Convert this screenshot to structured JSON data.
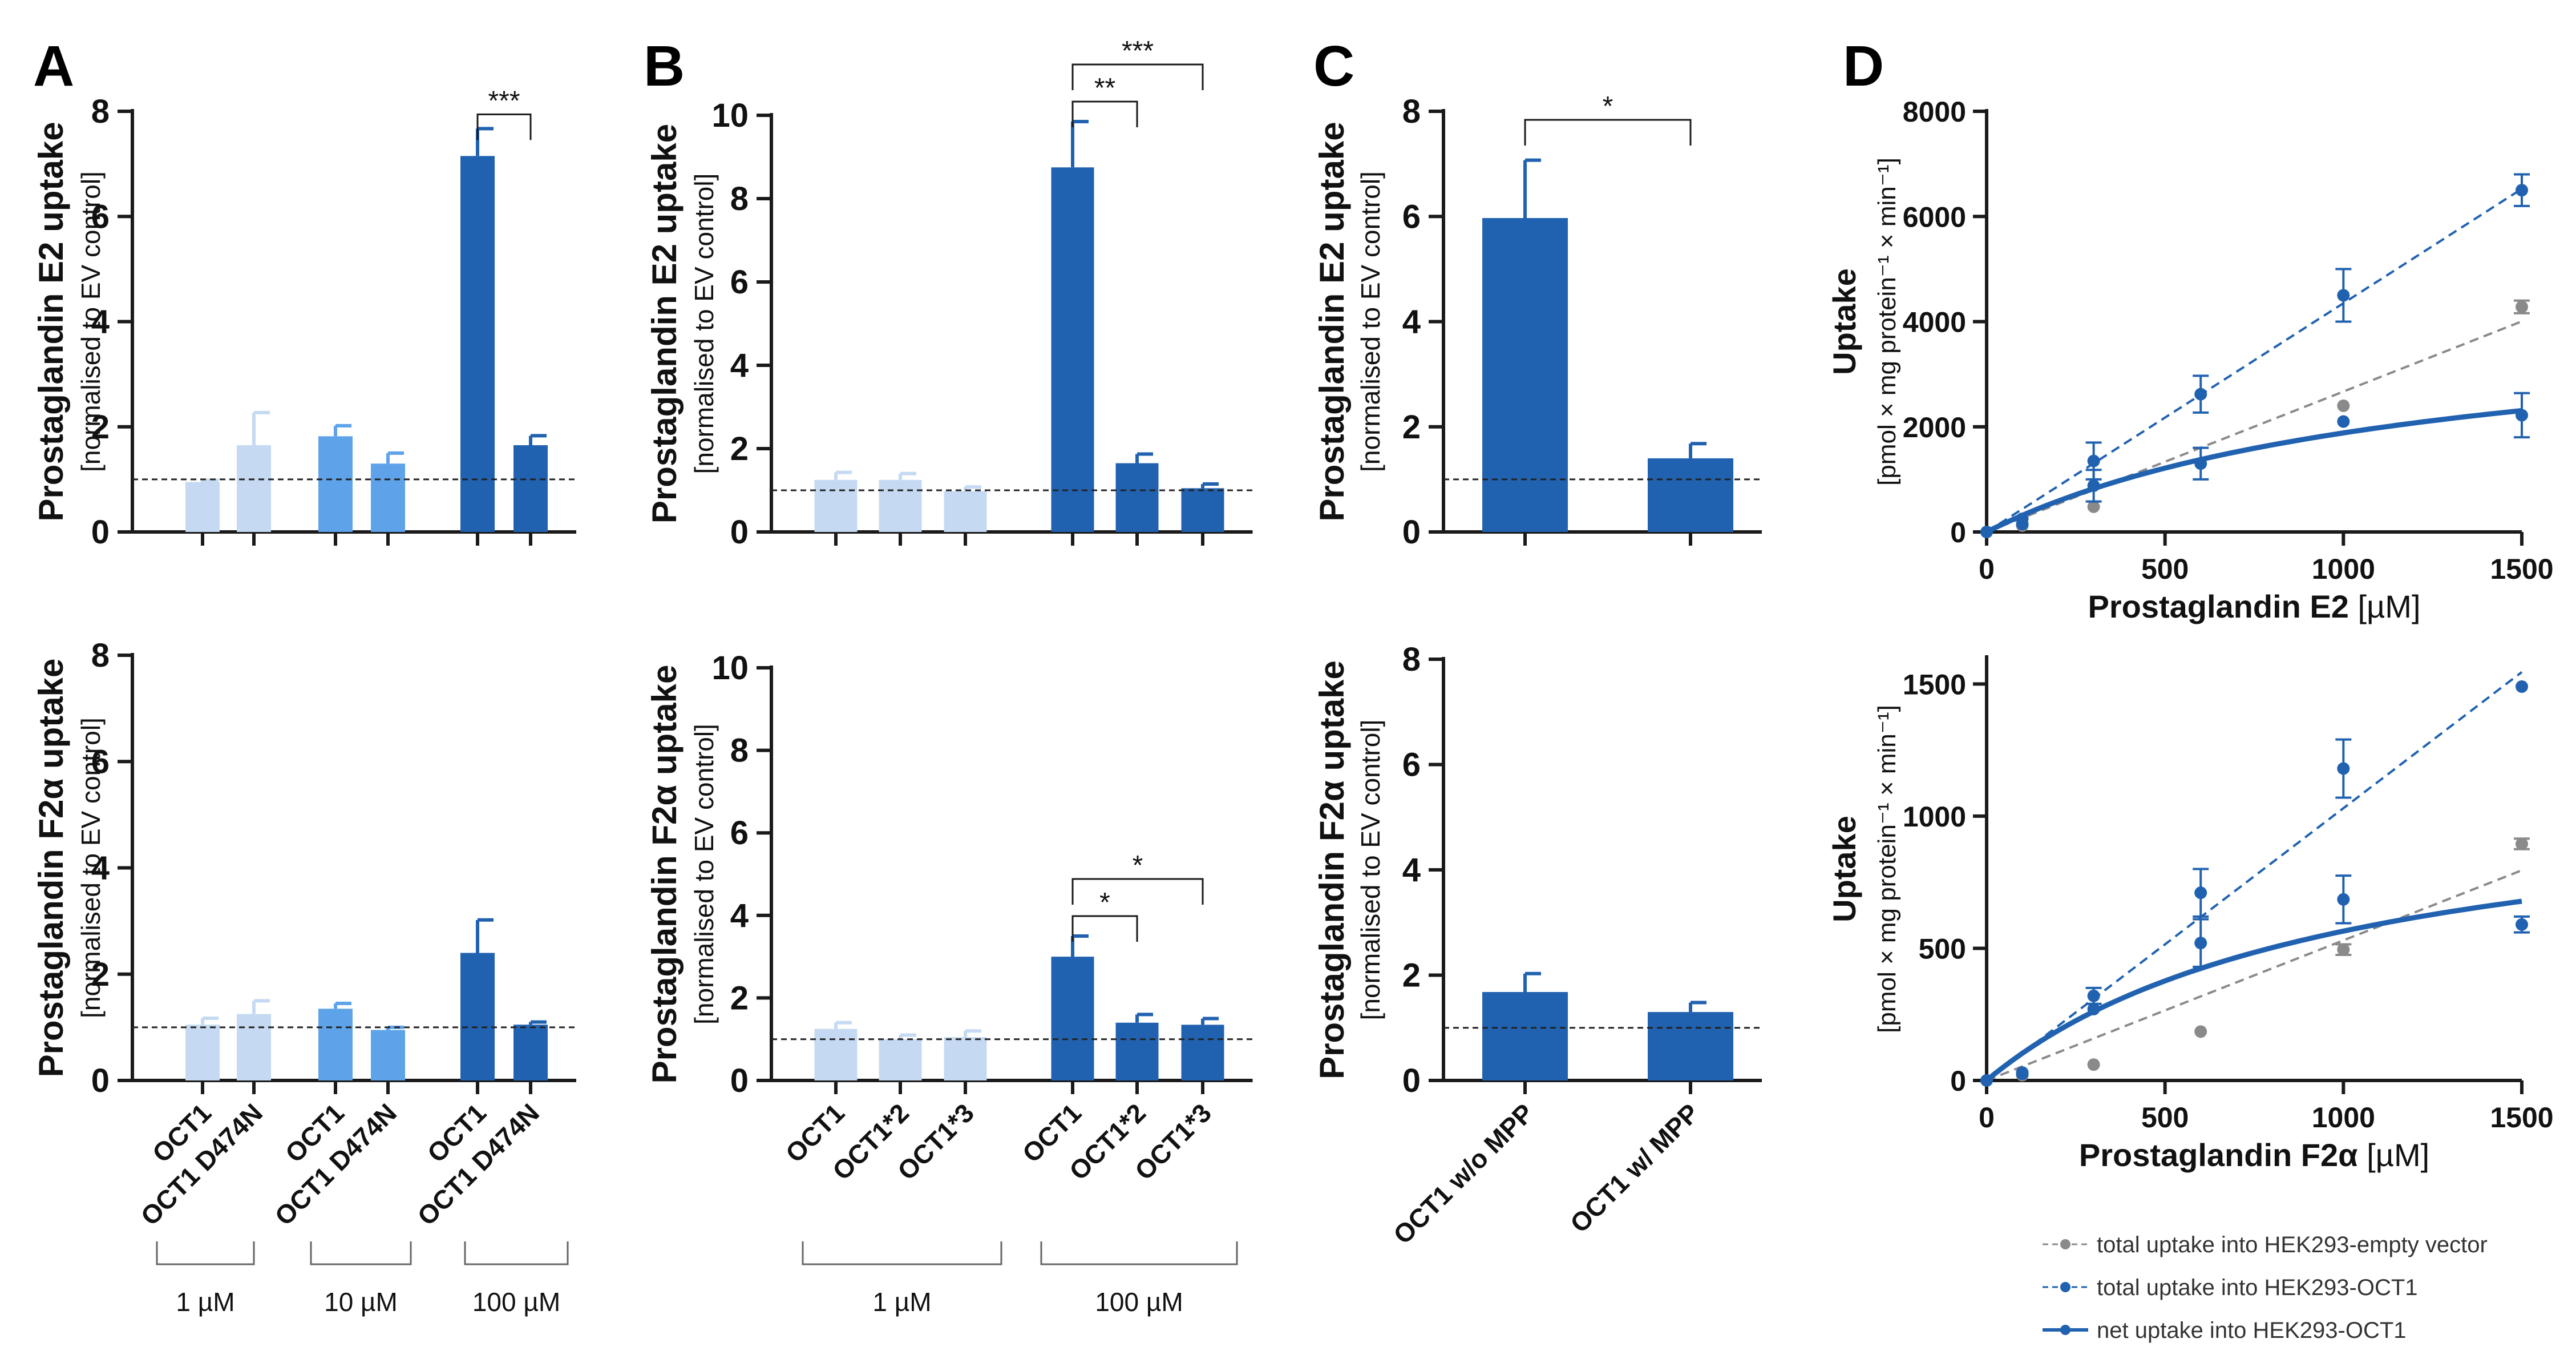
{
  "colors": {
    "c1": "#c5daf2",
    "c10": "#5ea3ea",
    "c100": "#2162b0",
    "grey": "#8a8a8a",
    "axis": "#1a1a1a",
    "ref": "#222222"
  },
  "shared": {
    "ylabel_unit": "[normalised to EV control]",
    "legend": [
      {
        "label": "total uptake into HEK293-empty vector",
        "style": "grey-dashed"
      },
      {
        "label": "total uptake into HEK293-OCT1",
        "style": "blue-dashed"
      },
      {
        "label": "net uptake into HEK293-OCT1",
        "style": "blue-solid"
      }
    ]
  },
  "chart_data": [
    {
      "id": "A-top",
      "panel": "A",
      "type": "bar",
      "ylabel_lines": [
        "Prostaglandin  E2 uptake"
      ],
      "ylim": [
        0,
        8
      ],
      "yticks": [
        0,
        2,
        4,
        6,
        8
      ],
      "categories": [
        "OCT1",
        "OCT1 D474N",
        "OCT1",
        "OCT1 D474N",
        "OCT1",
        "OCT1 D474N"
      ],
      "concentration": [
        "1 µM",
        "1 µM",
        "10 µM",
        "10 µM",
        "100 µM",
        "100 µM"
      ],
      "values": [
        0.95,
        1.65,
        1.82,
        1.3,
        7.15,
        1.65
      ],
      "errors": [
        0.03,
        0.62,
        0.2,
        0.2,
        0.52,
        0.18
      ],
      "color_keys": [
        "c1",
        "c1",
        "c10",
        "c10",
        "c100",
        "c100"
      ],
      "refline": 1,
      "significance": [
        {
          "from": 4,
          "to": 5,
          "label": "***"
        }
      ]
    },
    {
      "id": "A-bottom",
      "panel": "A",
      "type": "bar",
      "ylabel_lines": [
        "Prostaglandin  F2α  uptake"
      ],
      "ylim": [
        0,
        8
      ],
      "yticks": [
        0,
        2,
        4,
        6,
        8
      ],
      "categories": [
        "OCT1",
        "OCT1 D474N",
        "OCT1",
        "OCT1 D474N",
        "OCT1",
        "OCT1 D474N"
      ],
      "concentration": [
        "1 µM",
        "1 µM",
        "10 µM",
        "10 µM",
        "100 µM",
        "100 µM"
      ],
      "values": [
        1.05,
        1.25,
        1.35,
        0.95,
        2.4,
        1.05
      ],
      "errors": [
        0.12,
        0.25,
        0.1,
        0.05,
        0.62,
        0.05
      ],
      "color_keys": [
        "c1",
        "c1",
        "c10",
        "c10",
        "c100",
        "c100"
      ],
      "refline": 1,
      "significance": [],
      "group_labels": [
        "1 µM",
        "10 µM",
        "100 µM"
      ]
    },
    {
      "id": "B-top",
      "panel": "B",
      "type": "bar",
      "ylabel_lines": [
        "Prostaglandin E2 uptake"
      ],
      "ylim": [
        0,
        10
      ],
      "yticks": [
        0,
        2,
        4,
        6,
        8,
        10
      ],
      "categories": [
        "OCT1",
        "OCT1*2",
        "OCT1*3",
        "OCT1",
        "OCT1*2",
        "OCT1*3"
      ],
      "concentration": [
        "1 µM",
        "1 µM",
        "1 µM",
        "100 µM",
        "100 µM",
        "100 µM"
      ],
      "values": [
        1.25,
        1.25,
        0.98,
        8.75,
        1.65,
        1.05
      ],
      "errors": [
        0.18,
        0.15,
        0.1,
        1.1,
        0.22,
        0.1
      ],
      "color_keys": [
        "c1",
        "c1",
        "c1",
        "c100",
        "c100",
        "c100"
      ],
      "refline": 1,
      "significance": [
        {
          "from": 3,
          "to": 4,
          "label": "**"
        },
        {
          "from": 3,
          "to": 5,
          "label": "***"
        }
      ]
    },
    {
      "id": "B-bottom",
      "panel": "B",
      "type": "bar",
      "ylabel_lines": [
        "Prostaglandin F2α uptake"
      ],
      "ylim": [
        0,
        10
      ],
      "yticks": [
        0,
        2,
        4,
        6,
        8,
        10
      ],
      "categories": [
        "OCT1",
        "OCT1*2",
        "OCT1*3",
        "OCT1",
        "OCT1*2",
        "OCT1*3"
      ],
      "concentration": [
        "1 µM",
        "1 µM",
        "1 µM",
        "100 µM",
        "100 µM",
        "100 µM"
      ],
      "values": [
        1.25,
        1.0,
        1.05,
        3.0,
        1.4,
        1.35
      ],
      "errors": [
        0.15,
        0.1,
        0.15,
        0.5,
        0.2,
        0.15
      ],
      "color_keys": [
        "c1",
        "c1",
        "c1",
        "c100",
        "c100",
        "c100"
      ],
      "refline": 1,
      "significance": [
        {
          "from": 3,
          "to": 4,
          "label": "*"
        },
        {
          "from": 3,
          "to": 5,
          "label": "*"
        }
      ],
      "group_labels": [
        "1 µM",
        "100 µM"
      ]
    },
    {
      "id": "C-top",
      "panel": "C",
      "type": "bar",
      "ylabel_lines": [
        "Prostaglandin  E2 uptake"
      ],
      "ylim": [
        0,
        8
      ],
      "yticks": [
        0,
        2,
        4,
        6,
        8
      ],
      "categories": [
        "OCT1 w/o MPP",
        "OCT1 w/ MPP"
      ],
      "values": [
        5.97,
        1.4
      ],
      "errors": [
        1.1,
        0.28
      ],
      "color_keys": [
        "c100",
        "c100"
      ],
      "refline": 1,
      "significance": [
        {
          "from": 0,
          "to": 1,
          "label": "*"
        }
      ]
    },
    {
      "id": "C-bottom",
      "panel": "C",
      "type": "bar",
      "ylabel_lines": [
        "Prostaglandin  F2α  uptake"
      ],
      "ylim": [
        0,
        8
      ],
      "yticks": [
        0,
        2,
        4,
        6,
        8
      ],
      "categories": [
        "OCT1 w/o MPP",
        "OCT1 w/ MPP"
      ],
      "values": [
        1.68,
        1.3
      ],
      "errors": [
        0.35,
        0.18
      ],
      "color_keys": [
        "c100",
        "c100"
      ],
      "refline": 1,
      "significance": []
    },
    {
      "id": "D-top",
      "panel": "D",
      "type": "scatter",
      "ylabel": "Uptake",
      "ylabel_unit": "[pmol × mg protein⁻¹ × min⁻¹]",
      "xlabel_bold": "Prostaglandin E2",
      "xlabel_unit": " [µM]",
      "xlim": [
        0,
        1500
      ],
      "ylim": [
        0,
        8000
      ],
      "xticks": [
        0,
        500,
        1000,
        1500
      ],
      "yticks": [
        0,
        2000,
        4000,
        6000,
        8000
      ],
      "series": [
        {
          "name": "total uptake into HEK293-empty vector",
          "color_key": "grey",
          "line": "dashed",
          "x": [
            0,
            100,
            300,
            1000,
            1500
          ],
          "y": [
            0,
            120,
            480,
            2400,
            4280
          ],
          "err": [
            0,
            0,
            0,
            0,
            120
          ],
          "fit": {
            "kind": "linear",
            "slope": 2.67
          }
        },
        {
          "name": "total uptake into HEK293-OCT1",
          "color_key": "c100",
          "line": "dashed",
          "x": [
            0,
            100,
            300,
            600,
            1000,
            1500
          ],
          "y": [
            0,
            250,
            1350,
            2620,
            4500,
            6500
          ],
          "err": [
            0,
            0,
            350,
            350,
            500,
            300
          ],
          "fit": {
            "kind": "linear",
            "slope": 4.35
          }
        },
        {
          "name": "net uptake into HEK293-OCT1",
          "color_key": "c100",
          "line": "solid",
          "x": [
            0,
            100,
            300,
            600,
            1000,
            1500
          ],
          "y": [
            0,
            150,
            880,
            1300,
            2100,
            2220
          ],
          "err": [
            0,
            0,
            300,
            300,
            0,
            420
          ],
          "fit": {
            "kind": "mm",
            "vmax": 4200,
            "km": 1230
          }
        }
      ]
    },
    {
      "id": "D-bottom",
      "panel": "D",
      "type": "scatter",
      "ylabel": "Uptake",
      "ylabel_unit": "[pmol × mg protein⁻¹ × min⁻¹]",
      "xlabel_bold": "Prostaglandin F2α",
      "xlabel_unit": " [µM]",
      "xlim": [
        0,
        1500
      ],
      "ylim": [
        0,
        1600
      ],
      "xticks": [
        0,
        500,
        1000,
        1500
      ],
      "yticks": [
        0,
        500,
        1000,
        1500
      ],
      "series": [
        {
          "name": "total uptake into HEK293-empty vector",
          "color_key": "grey",
          "line": "dashed",
          "x": [
            0,
            100,
            300,
            600,
            1000,
            1500
          ],
          "y": [
            0,
            20,
            60,
            185,
            495,
            895
          ],
          "err": [
            0,
            0,
            0,
            0,
            20,
            20
          ],
          "fit": {
            "kind": "linear",
            "slope": 0.53
          }
        },
        {
          "name": "total uptake into HEK293-OCT1",
          "color_key": "c100",
          "line": "dashed",
          "x": [
            0,
            100,
            300,
            600,
            1000,
            1500
          ],
          "y": [
            0,
            30,
            320,
            710,
            1180,
            1490
          ],
          "err": [
            0,
            0,
            30,
            90,
            110,
            0
          ],
          "fit": {
            "kind": "linear",
            "slope": 1.03
          }
        },
        {
          "name": "net uptake into HEK293-OCT1",
          "color_key": "c100",
          "line": "solid",
          "x": [
            0,
            100,
            300,
            600,
            1000,
            1500
          ],
          "y": [
            0,
            25,
            270,
            520,
            685,
            590
          ],
          "err": [
            0,
            0,
            0,
            90,
            90,
            30
          ],
          "fit": {
            "kind": "mm",
            "vmax": 1130,
            "km": 1000
          }
        }
      ]
    }
  ],
  "panel_letters": [
    "A",
    "B",
    "C",
    "D"
  ]
}
